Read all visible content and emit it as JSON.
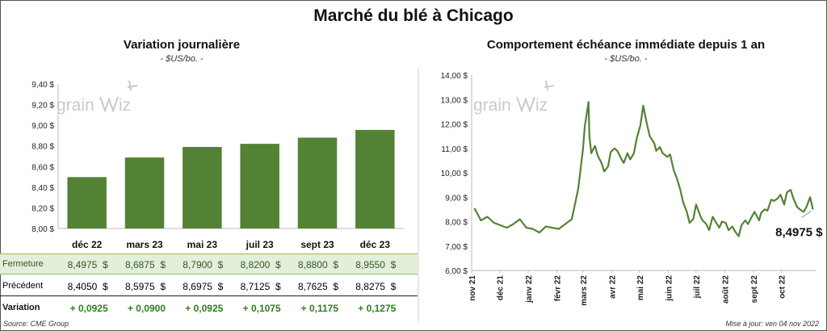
{
  "title": "Marché du blé à Chicago",
  "charts": [
    {
      "subtitle": "Variation journalière",
      "unit": "- $US/bo. -"
    },
    {
      "subtitle": "Comportement échéance immédiate depuis 1 an",
      "unit": "- $US/bo. -"
    }
  ],
  "chart_data": [
    {
      "type": "bar",
      "categories": [
        "déc 22",
        "mars 23",
        "mai 23",
        "juil 23",
        "sept 23",
        "déc 23"
      ],
      "values": [
        8.4975,
        8.6875,
        8.79,
        8.82,
        8.88,
        8.955
      ],
      "ylim": [
        8.0,
        9.4
      ],
      "yticks": [
        "8,00 $",
        "8,20 $",
        "8,40 $",
        "8,60 $",
        "8,80 $",
        "9,00 $",
        "9,20 $",
        "9,40 $"
      ],
      "color": "#548235",
      "grid": false
    },
    {
      "type": "line",
      "ylim": [
        6.0,
        14.0
      ],
      "yticks": [
        "6,00 $",
        "7,00 $",
        "8,00 $",
        "9,00 $",
        "10,00 $",
        "11,00 $",
        "12,00 $",
        "13,00 $",
        "14,00 $"
      ],
      "xticks": [
        "nov 21",
        "déc 21",
        "janv 22",
        "févr 22",
        "mars 22",
        "avr 22",
        "mai 22",
        "juin 22",
        "juil 22",
        "août 22",
        "sept 22",
        "oct 22"
      ],
      "x": [
        "2021-11-04",
        "2021-11-11",
        "2021-11-18",
        "2021-11-25",
        "2021-12-02",
        "2021-12-09",
        "2021-12-16",
        "2021-12-23",
        "2021-12-30",
        "2022-01-06",
        "2022-01-13",
        "2022-01-20",
        "2022-01-27",
        "2022-02-03",
        "2022-02-10",
        "2022-02-17",
        "2022-02-24",
        "2022-03-01",
        "2022-03-03",
        "2022-03-07",
        "2022-03-08",
        "2022-03-10",
        "2022-03-14",
        "2022-03-17",
        "2022-03-21",
        "2022-03-24",
        "2022-03-28",
        "2022-03-31",
        "2022-04-04",
        "2022-04-07",
        "2022-04-11",
        "2022-04-14",
        "2022-04-18",
        "2022-04-21",
        "2022-04-25",
        "2022-04-28",
        "2022-05-02",
        "2022-05-05",
        "2022-05-09",
        "2022-05-12",
        "2022-05-17",
        "2022-05-19",
        "2022-05-23",
        "2022-05-26",
        "2022-05-31",
        "2022-06-03",
        "2022-06-07",
        "2022-06-10",
        "2022-06-14",
        "2022-06-17",
        "2022-06-21",
        "2022-06-24",
        "2022-06-28",
        "2022-07-01",
        "2022-07-06",
        "2022-07-08",
        "2022-07-12",
        "2022-07-15",
        "2022-07-19",
        "2022-07-22",
        "2022-07-26",
        "2022-07-29",
        "2022-08-02",
        "2022-08-05",
        "2022-08-09",
        "2022-08-12",
        "2022-08-16",
        "2022-08-19",
        "2022-08-23",
        "2022-08-26",
        "2022-08-30",
        "2022-09-02",
        "2022-09-07",
        "2022-09-09",
        "2022-09-13",
        "2022-09-16",
        "2022-09-20",
        "2022-09-23",
        "2022-09-27",
        "2022-09-30",
        "2022-10-04",
        "2022-10-07",
        "2022-10-11",
        "2022-10-14",
        "2022-10-18",
        "2022-10-21",
        "2022-10-25",
        "2022-10-28",
        "2022-11-01",
        "2022-11-04"
      ],
      "values": [
        8.55,
        8.05,
        8.2,
        7.95,
        7.85,
        7.75,
        7.9,
        8.1,
        7.75,
        7.7,
        7.55,
        7.8,
        7.75,
        7.7,
        7.9,
        8.1,
        9.35,
        10.95,
        11.9,
        12.9,
        11.5,
        10.8,
        11.1,
        10.7,
        10.4,
        10.05,
        10.25,
        10.85,
        11.0,
        10.9,
        10.6,
        10.4,
        10.8,
        10.55,
        10.8,
        11.4,
        11.95,
        12.75,
        12.0,
        11.5,
        11.2,
        10.9,
        11.05,
        10.8,
        10.65,
        10.75,
        10.1,
        9.8,
        9.3,
        8.8,
        8.4,
        7.95,
        8.1,
        8.7,
        8.2,
        8.05,
        7.9,
        7.65,
        8.2,
        8.0,
        7.75,
        8.0,
        7.95,
        7.65,
        7.8,
        7.6,
        7.4,
        7.85,
        8.05,
        7.9,
        8.2,
        8.4,
        8.05,
        8.35,
        8.5,
        8.45,
        8.9,
        8.85,
        8.95,
        9.1,
        8.7,
        9.2,
        9.3,
        8.95,
        8.6,
        8.5,
        8.4,
        8.6,
        9.0,
        8.4975
      ],
      "last_label": "8,4975 $",
      "color": "#548235",
      "grid": false
    }
  ],
  "table": {
    "rows": [
      {
        "label": "Fermeture",
        "values": [
          "8,4975",
          "8,6875",
          "8,7900",
          "8,8200",
          "8,8800",
          "8,9550"
        ],
        "suffix": "$"
      },
      {
        "label": "Précédent",
        "values": [
          "8,4050",
          "8,5975",
          "8,6975",
          "8,7125",
          "8,7625",
          "8,8275"
        ],
        "suffix": "$"
      },
      {
        "label": "Variation",
        "values": [
          "+ 0,0925",
          "+ 0,0900",
          "+ 0,0925",
          "+ 0,1075",
          "+ 0,1175",
          "+ 0,1275"
        ],
        "suffix": ""
      }
    ]
  },
  "source": "Source: CME Group",
  "updated": "Mise à jour: ven 04 nov 2022"
}
